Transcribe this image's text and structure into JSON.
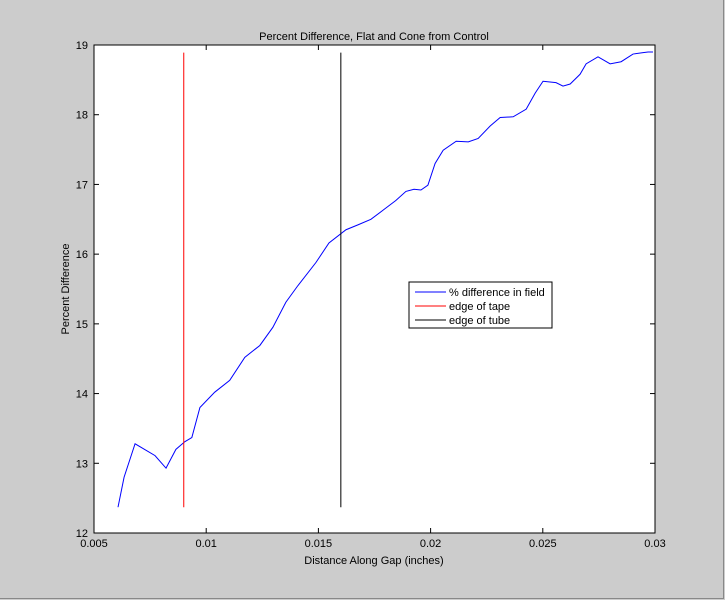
{
  "chart_data": {
    "type": "line",
    "title": "Percent Difference, Flat and Cone from Control",
    "xlabel": "Distance Along Gap (inches)",
    "ylabel": "Percent Difference",
    "xlim": [
      0.005,
      0.03
    ],
    "ylim": [
      12,
      19
    ],
    "xticks": [
      "0.005",
      "0.01",
      "0.015",
      "0.02",
      "0.025",
      "0.03"
    ],
    "yticks": [
      "12",
      "13",
      "14",
      "15",
      "16",
      "17",
      "18",
      "19"
    ],
    "grid": false,
    "legend_position": "inside-right-middle",
    "series": [
      {
        "name": "% difference in field",
        "color": "#0000ff",
        "x": [
          0.00607,
          0.00634,
          0.00683,
          0.00772,
          0.00821,
          0.00865,
          0.00905,
          0.00936,
          0.00972,
          0.01038,
          0.01105,
          0.01172,
          0.01239,
          0.01297,
          0.01355,
          0.01409,
          0.01489,
          0.01547,
          0.01623,
          0.01676,
          0.01734,
          0.01792,
          0.01845,
          0.0189,
          0.01926,
          0.01957,
          0.01988,
          0.0202,
          0.02056,
          0.02114,
          0.02168,
          0.02212,
          0.02266,
          0.0231,
          0.02368,
          0.02426,
          0.02466,
          0.02501,
          0.02559,
          0.0259,
          0.02622,
          0.02666,
          0.02693,
          0.02746,
          0.028,
          0.02849,
          0.02902,
          0.02947,
          0.02969,
          0.02991
        ],
        "y": [
          12.37,
          12.8,
          13.28,
          13.11,
          12.93,
          13.2,
          13.31,
          13.37,
          13.8,
          14.02,
          14.19,
          14.52,
          14.69,
          14.95,
          15.31,
          15.55,
          15.88,
          16.16,
          16.35,
          16.42,
          16.5,
          16.64,
          16.77,
          16.9,
          16.93,
          16.92,
          16.99,
          17.3,
          17.49,
          17.62,
          17.61,
          17.66,
          17.84,
          17.96,
          17.97,
          18.08,
          18.31,
          18.48,
          18.46,
          18.41,
          18.44,
          18.58,
          18.73,
          18.83,
          18.73,
          18.76,
          18.87,
          18.89,
          18.9,
          18.9
        ]
      },
      {
        "name": "edge of tape",
        "color": "#ff0000",
        "x": [
          0.009,
          0.009
        ],
        "y": [
          12.37,
          18.89
        ]
      },
      {
        "name": "edge of tube",
        "color": "#000000",
        "x": [
          0.016,
          0.016
        ],
        "y": [
          12.37,
          18.89
        ]
      }
    ]
  }
}
